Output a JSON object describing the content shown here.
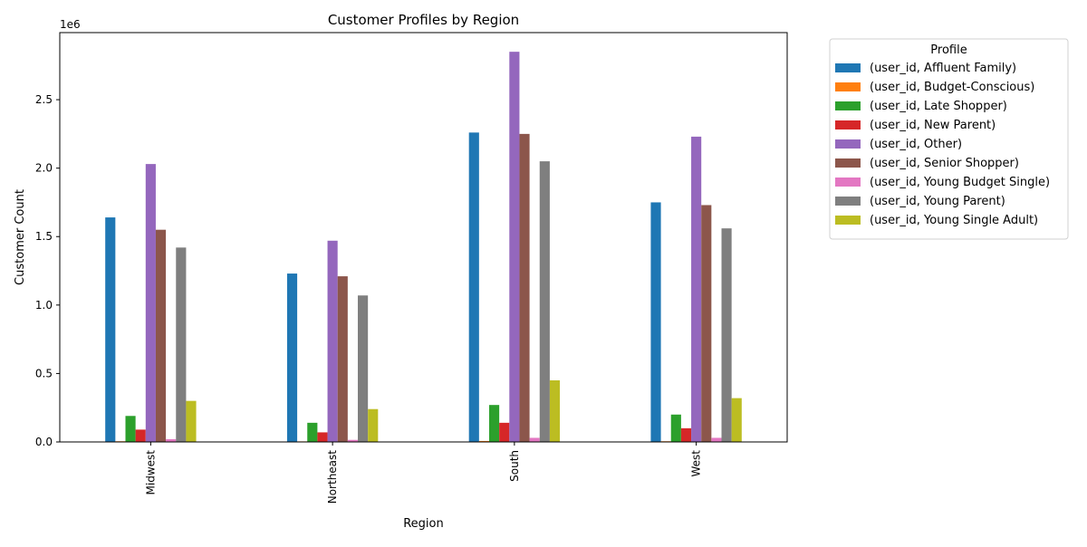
{
  "chart_data": {
    "type": "bar",
    "title": "Customer Profiles by Region",
    "xlabel": "Region",
    "ylabel": "Customer Count",
    "y_scale_label": "1e6",
    "ylim": [
      0,
      2.99
    ],
    "y_ticks": [
      0.0,
      0.5,
      1.0,
      1.5,
      2.0,
      2.5
    ],
    "y_tick_labels": [
      "0.0",
      "0.5",
      "1.0",
      "1.5",
      "2.0",
      "2.5"
    ],
    "grid": false,
    "legend_title": "Profile",
    "legend_position": "outside-right-top",
    "categories": [
      "Midwest",
      "Northeast",
      "South",
      "West"
    ],
    "series": [
      {
        "name": "(user_id, Affluent Family)",
        "color": "#1f77b4",
        "values": [
          1.64,
          1.23,
          2.26,
          1.75
        ]
      },
      {
        "name": "(user_id, Budget-Conscious)",
        "color": "#ff7f0e",
        "values": [
          0.005,
          0.004,
          0.007,
          0.005
        ]
      },
      {
        "name": "(user_id, Late Shopper)",
        "color": "#2ca02c",
        "values": [
          0.19,
          0.14,
          0.27,
          0.2
        ]
      },
      {
        "name": "(user_id, New Parent)",
        "color": "#d62728",
        "values": [
          0.09,
          0.07,
          0.14,
          0.1
        ]
      },
      {
        "name": "(user_id, Other)",
        "color": "#9467bd",
        "values": [
          2.03,
          1.47,
          2.85,
          2.23
        ]
      },
      {
        "name": "(user_id, Senior Shopper)",
        "color": "#8c564b",
        "values": [
          1.55,
          1.21,
          2.25,
          1.73
        ]
      },
      {
        "name": "(user_id, Young Budget Single)",
        "color": "#e377c2",
        "values": [
          0.02,
          0.015,
          0.03,
          0.03
        ]
      },
      {
        "name": "(user_id, Young Parent)",
        "color": "#7f7f7f",
        "values": [
          1.42,
          1.07,
          2.05,
          1.56
        ]
      },
      {
        "name": "(user_id, Young Single Adult)",
        "color": "#bcbd22",
        "values": [
          0.3,
          0.24,
          0.45,
          0.32
        ]
      }
    ]
  }
}
